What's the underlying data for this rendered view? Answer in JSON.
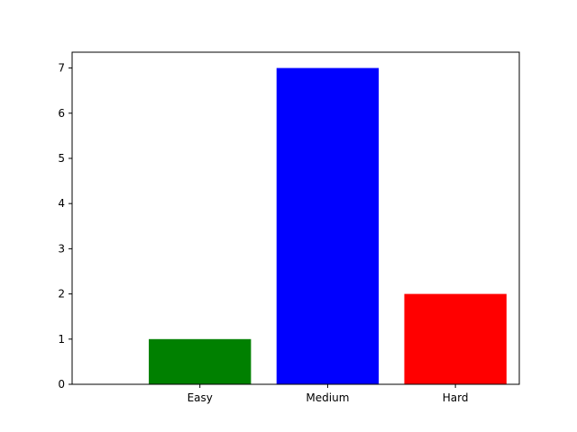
{
  "chart_data": {
    "type": "bar",
    "categories": [
      "Easy",
      "Medium",
      "Hard"
    ],
    "values": [
      1,
      7,
      2
    ],
    "colors": [
      "#008000",
      "#0000ff",
      "#ff0000"
    ],
    "title": "",
    "xlabel": "",
    "ylabel": "",
    "ylim": [
      0,
      7.35
    ],
    "yticks": [
      0,
      1,
      2,
      3,
      4,
      5,
      6,
      7
    ],
    "grid": false
  }
}
